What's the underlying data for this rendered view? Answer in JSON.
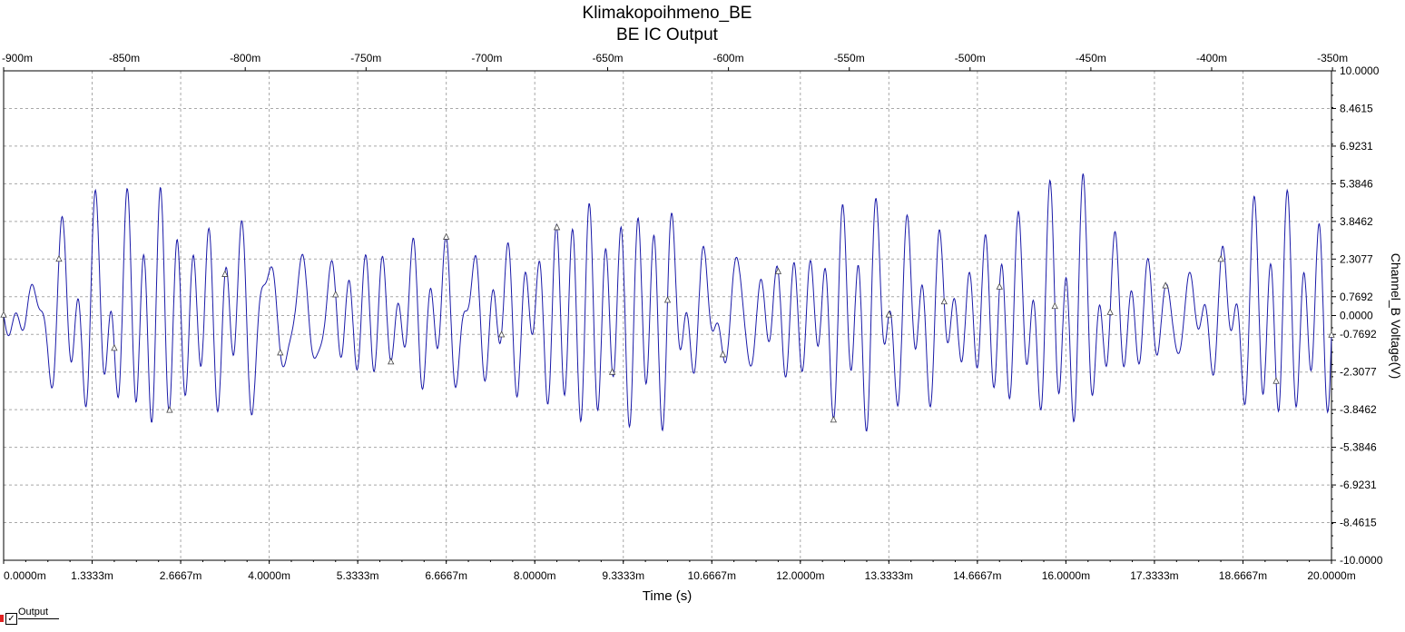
{
  "chart_data": {
    "type": "line",
    "title": "Klimakopoihmeno_BE",
    "subtitle": "BE IC Output",
    "xlabel": "Time (s)",
    "ylabel": "Channel_B Voltage(V)",
    "xlim": [
      0,
      0.02
    ],
    "ylim": [
      -10,
      10
    ],
    "x_ticks": [
      "0.0000m",
      "1.3333m",
      "2.6667m",
      "4.0000m",
      "5.3333m",
      "6.6667m",
      "8.0000m",
      "9.3333m",
      "10.6667m",
      "12.0000m",
      "13.3333m",
      "14.6667m",
      "16.0000m",
      "17.3333m",
      "18.6667m",
      "20.0000m"
    ],
    "x2_ticks": [
      "-900m",
      "-850m",
      "-800m",
      "-750m",
      "-700m",
      "-650m",
      "-600m",
      "-550m",
      "-500m",
      "-450m",
      "-400m",
      "-350m"
    ],
    "y_ticks": [
      "10.0000",
      "8.4615",
      "6.9231",
      "5.3846",
      "3.8462",
      "2.3077",
      "0.7692",
      "0.0000",
      "-0.7692",
      "-2.3077",
      "-3.8462",
      "-5.3846",
      "-6.9231",
      "-8.4615",
      "-10.0000"
    ],
    "y_tick_values": [
      10,
      8.4615,
      6.9231,
      5.3846,
      3.8462,
      2.3077,
      0.7692,
      0,
      -0.7692,
      -2.3077,
      -3.8462,
      -5.3846,
      -6.9231,
      -8.4615,
      -10
    ],
    "grid": true,
    "line_color": "#1a1aa8",
    "series": [
      {
        "name": "Output",
        "peak_values_approx": [
          3.8,
          2.7,
          3.5,
          3.1,
          2.8,
          5.4,
          3.2,
          3.3,
          -5.7,
          5.8,
          3.7,
          -4.9,
          3.5,
          5.3,
          3.7,
          -5.2,
          5.1,
          3.4,
          5.3,
          -5.2,
          3.9,
          5.0,
          4.3,
          3.7,
          4.2,
          5.4,
          5.6,
          4.3,
          3.9,
          4.1,
          3.9,
          5.5,
          4.1,
          4.5,
          3.7,
          5.3,
          4.7,
          5.1,
          3.5
        ]
      }
    ],
    "legend": {
      "position": "bottom-left",
      "entries": [
        "Output"
      ]
    }
  }
}
